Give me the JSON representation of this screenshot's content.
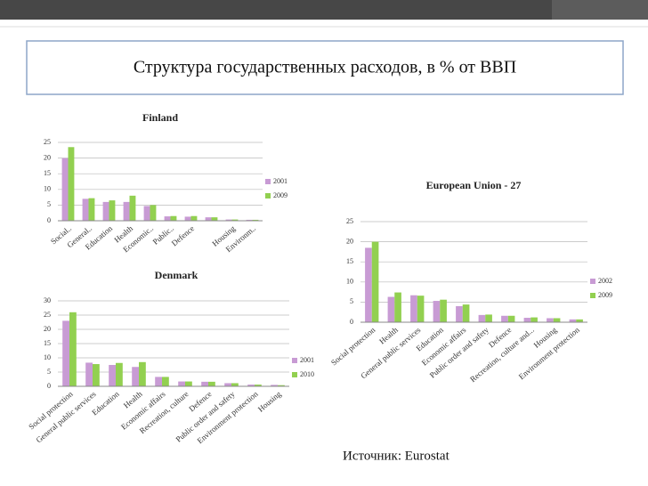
{
  "slide": {
    "title": "Структура государственных расходов, в % от ВВП",
    "source": "Источник: Eurostat"
  },
  "chart_data": [
    {
      "type": "bar",
      "title": "Finland",
      "categories": [
        "Social..",
        "General..",
        "Education",
        "Health",
        "Economic..",
        "Public..",
        "Defence",
        null,
        "Housing",
        "Environm.."
      ],
      "series": [
        {
          "name": "2001",
          "color": "#c89bd4",
          "values": [
            20,
            7,
            6,
            6,
            4.7,
            1.4,
            1.3,
            1.1,
            0.4,
            0.3
          ]
        },
        {
          "name": "2009",
          "color": "#92d050",
          "values": [
            23.5,
            7.2,
            6.5,
            8,
            5,
            1.5,
            1.5,
            1.1,
            0.4,
            0.3
          ]
        }
      ],
      "ylim": [
        0,
        25
      ],
      "yticks": [
        0,
        5,
        10,
        15,
        20,
        25
      ],
      "grid": true,
      "legend": "right"
    },
    {
      "type": "bar",
      "title": "Denmark",
      "categories": [
        "Social protection",
        "General public services",
        "Education",
        "Health",
        "Economic affairs",
        "Recreation, culture",
        "Defence",
        "Public order and safety",
        "Environment protection",
        "Housing"
      ],
      "series": [
        {
          "name": "2001",
          "color": "#c89bd4",
          "values": [
            23,
            8.3,
            7.5,
            6.8,
            3.3,
            1.7,
            1.6,
            1.1,
            0.6,
            0.5
          ]
        },
        {
          "name": "2010",
          "color": "#92d050",
          "values": [
            26,
            7.8,
            8.2,
            8.5,
            3.3,
            1.7,
            1.6,
            1.1,
            0.6,
            0.4
          ]
        }
      ],
      "ylim": [
        0,
        30
      ],
      "yticks": [
        0,
        5,
        10,
        15,
        20,
        25,
        30
      ],
      "grid": true,
      "legend": "right"
    },
    {
      "type": "bar",
      "title": "European Union - 27",
      "categories": [
        "Social protection",
        "Health",
        "General public services",
        "Education",
        "Economic affairs",
        "Public order and safety",
        "Defence",
        "Recreation, culture and...",
        "Housing",
        "Environment protection"
      ],
      "series": [
        {
          "name": "2002",
          "color": "#c89bd4",
          "values": [
            18.5,
            6.3,
            6.7,
            5.3,
            4,
            1.8,
            1.6,
            1.1,
            1,
            0.7
          ]
        },
        {
          "name": "2009",
          "color": "#92d050",
          "values": [
            20,
            7.4,
            6.6,
            5.6,
            4.4,
            1.9,
            1.6,
            1.2,
            1,
            0.7
          ]
        }
      ],
      "ylim": [
        0,
        25
      ],
      "yticks": [
        0,
        5,
        10,
        15,
        20,
        25
      ],
      "grid": true,
      "legend": "right"
    }
  ]
}
